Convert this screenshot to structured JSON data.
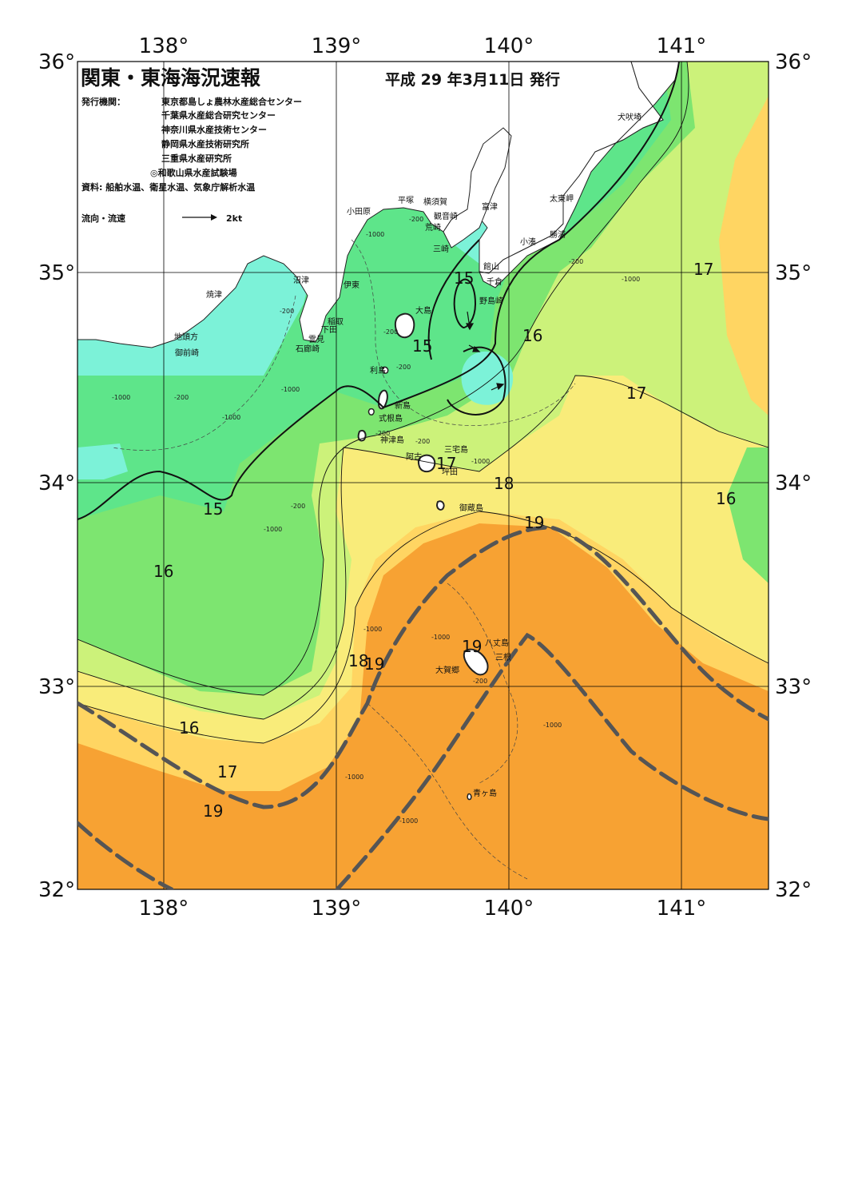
{
  "header": {
    "title": "関東・東海海況速報",
    "date": "平成 29 年3月11日 発行",
    "issuer_label": "発行機関：",
    "issuers": [
      "東京都島しょ農林水産総合センター",
      "千葉県水産総合研究センター",
      "神奈川県水産技術センター",
      "静岡県水産技術研究所",
      "三重県水産研究所",
      "◎和歌山県水産試験場"
    ],
    "source": "資料: 船舶水温、衛星水温、気象庁解析水温",
    "current_legend_label": "流向・流速",
    "current_legend_scale": "2kt"
  },
  "axes": {
    "lon_labels": [
      "138°",
      "139°",
      "140°",
      "141°"
    ],
    "lat_labels": [
      "36°",
      "35°",
      "34°",
      "33°",
      "32°"
    ]
  },
  "colors": {
    "c13": "#33d6f0",
    "c14": "#7cf2d8",
    "c15": "#5ee58a",
    "c16": "#7de570",
    "c17": "#ccf27a",
    "c18": "#f9ec7a",
    "c18b": "#ffd562",
    "c19": "#f7a233",
    "land": "#ffffff",
    "kuroshio": "#555555"
  },
  "isotherm_labels": [
    {
      "text": "15"
    },
    {
      "text": "15"
    },
    {
      "text": "15"
    },
    {
      "text": "16"
    },
    {
      "text": "16"
    },
    {
      "text": "16"
    },
    {
      "text": "16"
    },
    {
      "text": "17"
    },
    {
      "text": "17"
    },
    {
      "text": "17"
    },
    {
      "text": "17"
    },
    {
      "text": "18"
    },
    {
      "text": "18"
    },
    {
      "text": "19"
    },
    {
      "text": "19"
    },
    {
      "text": "19"
    },
    {
      "text": "19"
    }
  ],
  "depth_labels": [
    "-200",
    "-1000"
  ],
  "places": [
    "犬吠埼",
    "太東岬",
    "勝浦",
    "小湊",
    "館山",
    "千倉",
    "野島崎",
    "富津",
    "横須賀",
    "平塚",
    "観音崎",
    "荒崎",
    "三崎",
    "小田原",
    "沼津",
    "伊東",
    "焼津",
    "稲取",
    "下田",
    "雲見",
    "石廊崎",
    "地頭方",
    "御前崎",
    "大島",
    "利島",
    "新島",
    "式根島",
    "神津島",
    "三宅島",
    "阿古",
    "坪田",
    "御蔵島",
    "八丈島",
    "大賀郷",
    "三根",
    "青ヶ島"
  ]
}
